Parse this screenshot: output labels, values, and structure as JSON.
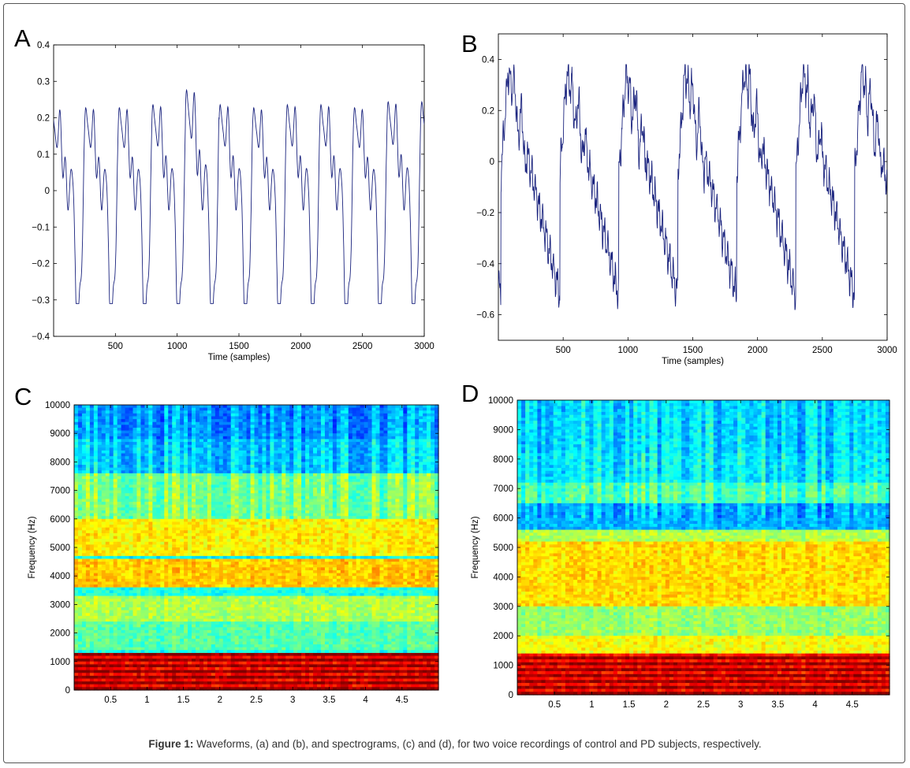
{
  "figure": {
    "caption_label": "Figure 1:",
    "caption_text": " Waveforms, (a) and (b), and spectrograms, (c) and (d), for two voice recordings of control and PD subjects, respectively."
  },
  "colors": {
    "waveform": "#1a237e",
    "colormap": "jet"
  },
  "chart_data": [
    {
      "panel": "A",
      "type": "line",
      "xlabel": "Time (samples)",
      "ylabel": "",
      "xlim": [
        0,
        3000
      ],
      "ylim": [
        -0.4,
        0.4
      ],
      "xticks": [
        500,
        1000,
        1500,
        2000,
        2500,
        3000
      ],
      "xtick_labels": [
        "500",
        "1000",
        "1500",
        "2000",
        "2500",
        "3000"
      ],
      "yticks": [
        -0.4,
        -0.3,
        -0.2,
        -0.1,
        0,
        0.1,
        0.2,
        0.3,
        0.4
      ],
      "ytick_labels": [
        "-0.4",
        "-0.3",
        "-0.2",
        "-0.1",
        "0",
        "0.1",
        "0.2",
        "0.3",
        "0.4"
      ],
      "period_samples": 272,
      "cycle_peaks": [
        {
          "x": 130,
          "y": 0.28
        },
        {
          "x": 400,
          "y": 0.28
        },
        {
          "x": 670,
          "y": 0.28
        },
        {
          "x": 950,
          "y": 0.29
        },
        {
          "x": 1220,
          "y": 0.34
        },
        {
          "x": 1480,
          "y": 0.29
        },
        {
          "x": 1755,
          "y": 0.28
        },
        {
          "x": 2025,
          "y": 0.29
        },
        {
          "x": 2290,
          "y": 0.29
        },
        {
          "x": 2560,
          "y": 0.28
        },
        {
          "x": 2830,
          "y": 0.3
        }
      ],
      "cycle_troughs": [
        {
          "x": 250,
          "y": -0.3
        },
        {
          "x": 520,
          "y": -0.3
        },
        {
          "x": 790,
          "y": -0.31
        },
        {
          "x": 1060,
          "y": -0.31
        },
        {
          "x": 1330,
          "y": -0.29
        },
        {
          "x": 1600,
          "y": -0.3
        },
        {
          "x": 1880,
          "y": -0.31
        },
        {
          "x": 2150,
          "y": -0.3
        },
        {
          "x": 2420,
          "y": -0.3
        },
        {
          "x": 2690,
          "y": -0.29
        },
        {
          "x": 2960,
          "y": -0.28
        }
      ]
    },
    {
      "panel": "B",
      "type": "line",
      "xlabel": "Time (samples)",
      "ylabel": "",
      "xlim": [
        0,
        3000
      ],
      "ylim": [
        -0.7,
        0.5
      ],
      "xticks": [
        500,
        1000,
        1500,
        2000,
        2500,
        3000
      ],
      "xtick_labels": [
        "500",
        "1000",
        "1500",
        "2000",
        "2500",
        "3000"
      ],
      "yticks": [
        -0.6,
        -0.4,
        -0.2,
        0,
        0.2,
        0.4
      ],
      "ytick_labels": [
        "-0.6",
        "-0.4",
        "-0.2",
        "0",
        "0.2",
        "0.4"
      ],
      "period_samples": 455,
      "cycle_peaks": [
        {
          "x": 0,
          "y": 0.33
        },
        {
          "x": 440,
          "y": 0.35
        },
        {
          "x": 880,
          "y": 0.36
        },
        {
          "x": 1340,
          "y": 0.37
        },
        {
          "x": 1790,
          "y": 0.33
        },
        {
          "x": 2240,
          "y": 0.33
        },
        {
          "x": 2690,
          "y": 0.33
        }
      ],
      "cycle_troughs": [
        {
          "x": 180,
          "y": -0.58
        },
        {
          "x": 620,
          "y": -0.55
        },
        {
          "x": 1080,
          "y": -0.48
        },
        {
          "x": 1530,
          "y": -0.5
        },
        {
          "x": 1990,
          "y": -0.47
        },
        {
          "x": 2450,
          "y": -0.47
        },
        {
          "x": 2900,
          "y": -0.43
        }
      ]
    },
    {
      "panel": "C",
      "type": "heatmap",
      "xlabel": "",
      "ylabel": "Frequency (Hz)",
      "xlim": [
        0,
        5
      ],
      "ylim": [
        0,
        10000
      ],
      "xticks": [
        0.5,
        1,
        1.5,
        2,
        2.5,
        3,
        3.5,
        4,
        4.5
      ],
      "xtick_labels": [
        "0.5",
        "1",
        "1.5",
        "2",
        "2.5",
        "3",
        "3.5",
        "4",
        "4.5"
      ],
      "yticks": [
        0,
        1000,
        2000,
        3000,
        4000,
        5000,
        6000,
        7000,
        8000,
        9000,
        10000
      ],
      "ytick_labels": [
        "0",
        "1000",
        "2000",
        "3000",
        "4000",
        "5000",
        "6000",
        "7000",
        "8000",
        "9000",
        "10000"
      ],
      "colorscale": "jet",
      "band_levels": [
        {
          "f0": 0,
          "f1": 1300,
          "level": 0.93
        },
        {
          "f0": 1300,
          "f1": 2400,
          "level": 0.46
        },
        {
          "f0": 2400,
          "f1": 3300,
          "level": 0.55
        },
        {
          "f0": 3300,
          "f1": 3600,
          "level": 0.4
        },
        {
          "f0": 3600,
          "f1": 4600,
          "level": 0.68
        },
        {
          "f0": 4600,
          "f1": 4750,
          "level": 0.38
        },
        {
          "f0": 4750,
          "f1": 6000,
          "level": 0.64
        },
        {
          "f0": 6000,
          "f1": 7600,
          "level": 0.5
        },
        {
          "f0": 7600,
          "f1": 8800,
          "level": 0.33
        },
        {
          "f0": 8800,
          "f1": 10000,
          "level": 0.28
        }
      ]
    },
    {
      "panel": "D",
      "type": "heatmap",
      "xlabel": "",
      "ylabel": "Frequency (Hz)",
      "xlim": [
        0,
        5
      ],
      "ylim": [
        0,
        10000
      ],
      "xticks": [
        0.5,
        1,
        1.5,
        2,
        2.5,
        3,
        3.5,
        4,
        4.5
      ],
      "xtick_labels": [
        "0.5",
        "1",
        "1.5",
        "2",
        "2.5",
        "3",
        "3.5",
        "4",
        "4.5"
      ],
      "yticks": [
        0,
        1000,
        2000,
        3000,
        4000,
        5000,
        6000,
        7000,
        8000,
        9000,
        10000
      ],
      "ytick_labels": [
        "0",
        "1000",
        "2000",
        "3000",
        "4000",
        "5000",
        "6000",
        "7000",
        "8000",
        "9000",
        "10000"
      ],
      "colorscale": "jet",
      "band_levels": [
        {
          "f0": 0,
          "f1": 1400,
          "level": 0.92
        },
        {
          "f0": 1400,
          "f1": 2000,
          "level": 0.62
        },
        {
          "f0": 2000,
          "f1": 3000,
          "level": 0.52
        },
        {
          "f0": 3000,
          "f1": 5200,
          "level": 0.66
        },
        {
          "f0": 5200,
          "f1": 5600,
          "level": 0.55
        },
        {
          "f0": 5600,
          "f1": 6500,
          "level": 0.3
        },
        {
          "f0": 6500,
          "f1": 7200,
          "level": 0.45
        },
        {
          "f0": 7200,
          "f1": 8200,
          "level": 0.36
        },
        {
          "f0": 8200,
          "f1": 10000,
          "level": 0.34
        }
      ]
    }
  ]
}
